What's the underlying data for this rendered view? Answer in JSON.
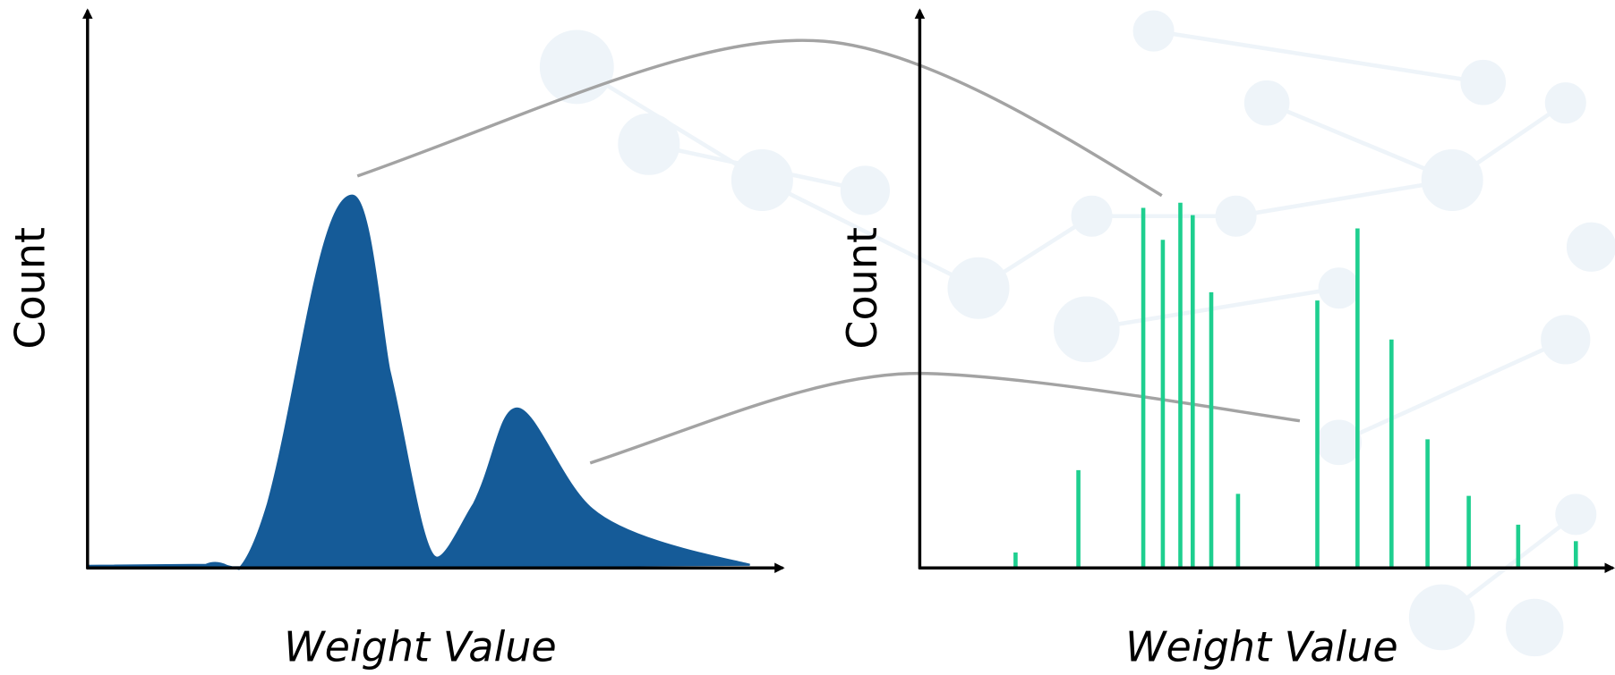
{
  "left_panel": {
    "y_label": "Count",
    "x_label": "Weight Value"
  },
  "right_panel": {
    "y_label": "Count",
    "x_label": "Weight Value"
  }
}
